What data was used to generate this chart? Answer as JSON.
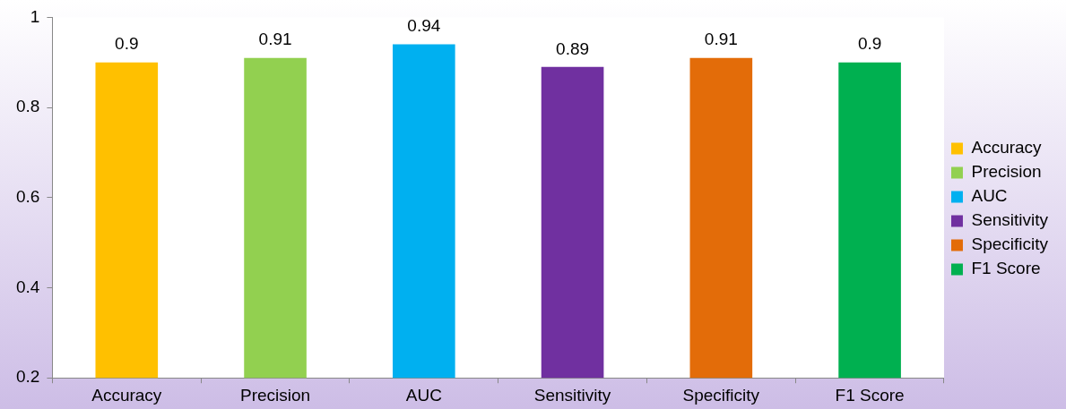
{
  "chart_data": {
    "type": "bar",
    "categories": [
      "Accuracy",
      "Precision",
      "AUC",
      "Sensitivity",
      "Specificity",
      "F1 Score"
    ],
    "series": [
      {
        "name": "Accuracy",
        "color": "#ffc000",
        "values": [
          0.9,
          null,
          null,
          null,
          null,
          null
        ]
      },
      {
        "name": "Precision",
        "color": "#92d050",
        "values": [
          null,
          0.91,
          null,
          null,
          null,
          null
        ]
      },
      {
        "name": "AUC",
        "color": "#00b0f0",
        "values": [
          null,
          null,
          0.94,
          null,
          null,
          null
        ]
      },
      {
        "name": "Sensitivity",
        "color": "#7030a0",
        "values": [
          null,
          null,
          null,
          0.89,
          null,
          null
        ]
      },
      {
        "name": "Specificity",
        "color": "#e36c09",
        "values": [
          null,
          null,
          null,
          null,
          0.91,
          null
        ]
      },
      {
        "name": "F1 Score",
        "color": "#00b050",
        "values": [
          null,
          null,
          null,
          null,
          null,
          0.9
        ]
      }
    ],
    "ylim": [
      0.2,
      1
    ],
    "yticks": [
      0.2,
      0.4,
      0.6,
      0.8,
      1
    ],
    "data_labels": true,
    "legend": "right"
  }
}
